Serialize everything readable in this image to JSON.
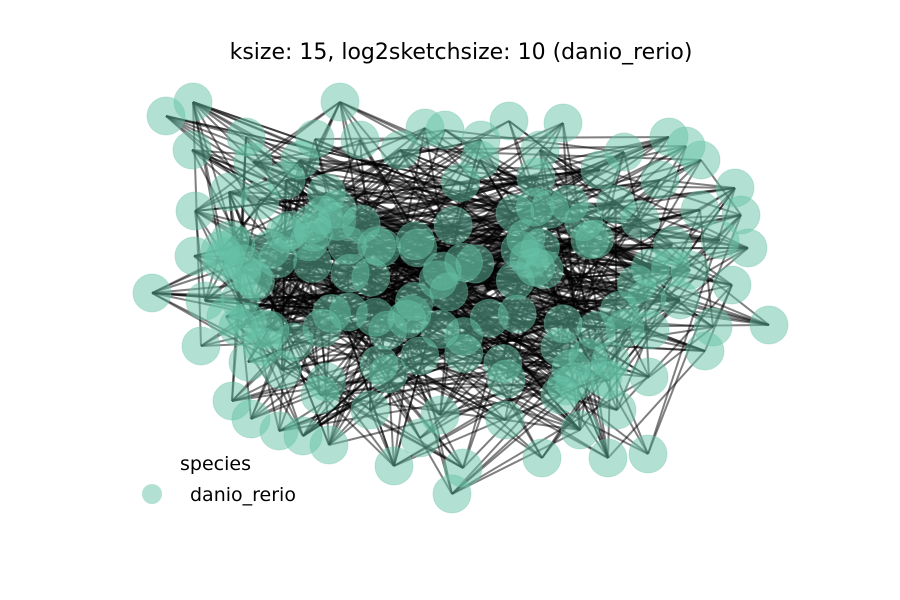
{
  "title": "ksize: 15, log2sketchsize: 10 (danio_rerio)",
  "legend": {
    "title": "species",
    "entries": [
      {
        "label": "danio_rerio",
        "color": "#66c2a5"
      }
    ]
  },
  "style": {
    "node_color": "#66c2a5",
    "node_alpha": 0.5,
    "edge_color": "#000000",
    "edge_alpha": 0.5
  }
}
